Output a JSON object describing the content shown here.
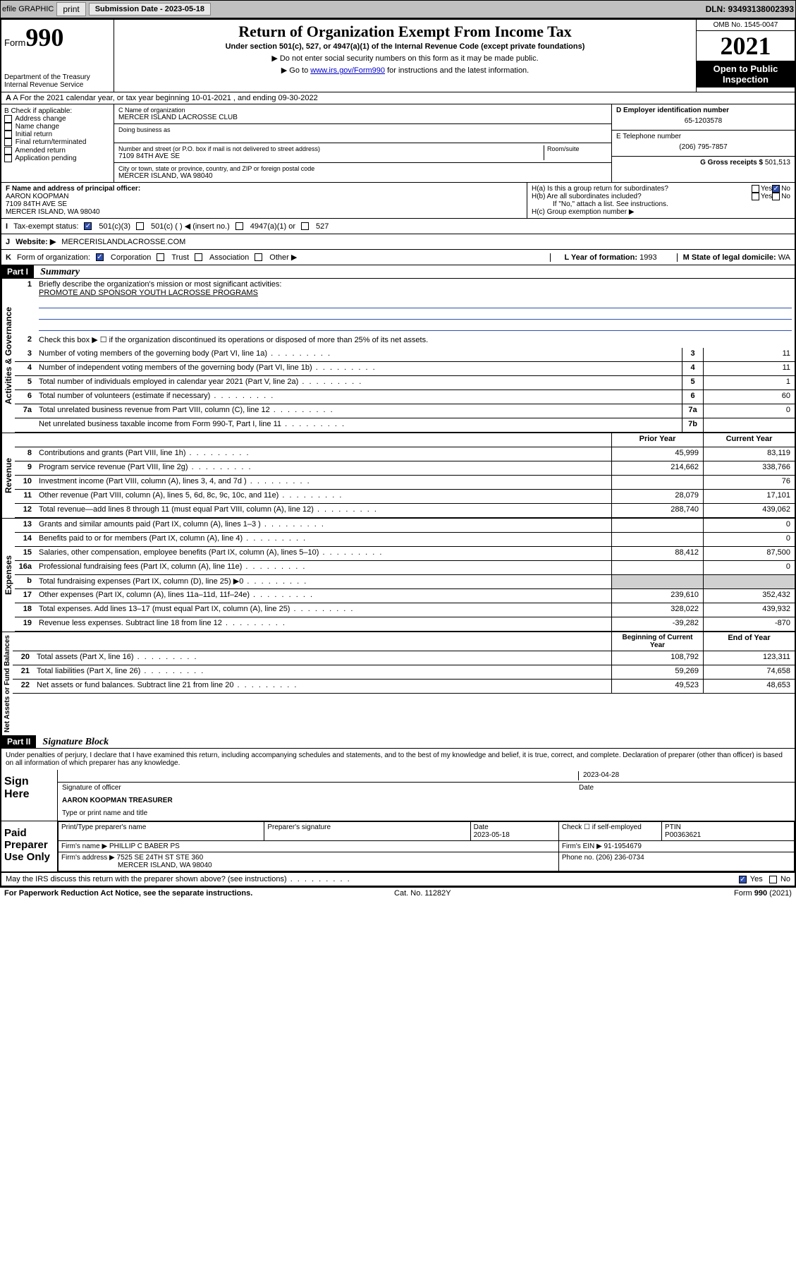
{
  "toolbar": {
    "efile": "efile GRAPHIC",
    "print": "print",
    "sub_label": "Submission Date - 2023-05-18",
    "dln": "DLN: 93493138002393"
  },
  "header": {
    "form_prefix": "Form",
    "form_num": "990",
    "title": "Return of Organization Exempt From Income Tax",
    "subtitle": "Under section 501(c), 527, or 4947(a)(1) of the Internal Revenue Code (except private foundations)",
    "note1": "▶ Do not enter social security numbers on this form as it may be made public.",
    "note2_pre": "▶ Go to ",
    "note2_link": "www.irs.gov/Form990",
    "note2_post": " for instructions and the latest information.",
    "dept": "Department of the Treasury\nInternal Revenue Service",
    "omb": "OMB No. 1545-0047",
    "year": "2021",
    "open": "Open to Public Inspection"
  },
  "row_a": "A  For the 2021 calendar year, or tax year beginning 10-01-2021    , and ending 09-30-2022",
  "box_b": {
    "title": "B Check if applicable:",
    "items": [
      "Address change",
      "Name change",
      "Initial return",
      "Final return/terminated",
      "Amended return",
      "Application pending"
    ]
  },
  "box_c": {
    "label_name": "C Name of organization",
    "name": "MERCER ISLAND LACROSSE CLUB",
    "dba_label": "Doing business as",
    "addr_label": "Number and street (or P.O. box if mail is not delivered to street address)",
    "room_label": "Room/suite",
    "addr": "7109 84TH AVE SE",
    "city_label": "City or town, state or province, country, and ZIP or foreign postal code",
    "city": "MERCER ISLAND, WA  98040"
  },
  "box_d": {
    "label": "D Employer identification number",
    "value": "65-1203578"
  },
  "box_e": {
    "label": "E Telephone number",
    "value": "(206) 795-7857"
  },
  "box_g": {
    "label": "G Gross receipts $",
    "value": "501,513"
  },
  "box_f": {
    "label": "F Name and address of principal officer:",
    "name": "AARON KOOPMAN",
    "addr1": "7109 84TH AVE SE",
    "addr2": "MERCER ISLAND, WA  98040"
  },
  "box_h": {
    "ha": "H(a)  Is this a group return for subordinates?",
    "hb": "H(b)  Are all subordinates included?",
    "hb_note": "If \"No,\" attach a list. See instructions.",
    "hc": "H(c)  Group exemption number ▶",
    "yes": "Yes",
    "no": "No"
  },
  "row_i": {
    "label": "I",
    "text": "Tax-exempt status:",
    "o1": "501(c)(3)",
    "o2": "501(c) (  ) ◀ (insert no.)",
    "o3": "4947(a)(1) or",
    "o4": "527"
  },
  "row_j": {
    "label": "J",
    "text": "Website: ▶",
    "value": "MERCERISLANDLACROSSE.COM"
  },
  "row_k": {
    "label": "K",
    "text": "Form of organization:",
    "o1": "Corporation",
    "o2": "Trust",
    "o3": "Association",
    "o4": "Other ▶"
  },
  "row_l": {
    "label": "L Year of formation:",
    "value": "1993"
  },
  "row_m": {
    "label": "M State of legal domicile:",
    "value": "WA"
  },
  "part1": {
    "hdr": "Part I",
    "title": "Summary",
    "l1": "Briefly describe the organization's mission or most significant activities:",
    "mission": "PROMOTE AND SPONSOR YOUTH LACROSSE PROGRAMS",
    "l2": "Check this box ▶ ☐  if the organization discontinued its operations or disposed of more than 25% of its net assets.",
    "sections": {
      "gov": "Activities & Governance",
      "rev": "Revenue",
      "exp": "Expenses",
      "net": "Net Assets or Fund Balances"
    },
    "rows_gov": [
      {
        "n": "3",
        "t": "Number of voting members of the governing body (Part VI, line 1a)",
        "b": "3",
        "v": "11"
      },
      {
        "n": "4",
        "t": "Number of independent voting members of the governing body (Part VI, line 1b)",
        "b": "4",
        "v": "11"
      },
      {
        "n": "5",
        "t": "Total number of individuals employed in calendar year 2021 (Part V, line 2a)",
        "b": "5",
        "v": "1"
      },
      {
        "n": "6",
        "t": "Total number of volunteers (estimate if necessary)",
        "b": "6",
        "v": "60"
      },
      {
        "n": "7a",
        "t": "Total unrelated business revenue from Part VIII, column (C), line 12",
        "b": "7a",
        "v": "0"
      },
      {
        "n": "",
        "t": "Net unrelated business taxable income from Form 990-T, Part I, line 11",
        "b": "7b",
        "v": ""
      }
    ],
    "col_prior": "Prior Year",
    "col_curr": "Current Year",
    "rows_rev": [
      {
        "n": "8",
        "t": "Contributions and grants (Part VIII, line 1h)",
        "p": "45,999",
        "c": "83,119"
      },
      {
        "n": "9",
        "t": "Program service revenue (Part VIII, line 2g)",
        "p": "214,662",
        "c": "338,766"
      },
      {
        "n": "10",
        "t": "Investment income (Part VIII, column (A), lines 3, 4, and 7d )",
        "p": "",
        "c": "76"
      },
      {
        "n": "11",
        "t": "Other revenue (Part VIII, column (A), lines 5, 6d, 8c, 9c, 10c, and 11e)",
        "p": "28,079",
        "c": "17,101"
      },
      {
        "n": "12",
        "t": "Total revenue—add lines 8 through 11 (must equal Part VIII, column (A), line 12)",
        "p": "288,740",
        "c": "439,062"
      }
    ],
    "rows_exp": [
      {
        "n": "13",
        "t": "Grants and similar amounts paid (Part IX, column (A), lines 1–3 )",
        "p": "",
        "c": "0"
      },
      {
        "n": "14",
        "t": "Benefits paid to or for members (Part IX, column (A), line 4)",
        "p": "",
        "c": "0"
      },
      {
        "n": "15",
        "t": "Salaries, other compensation, employee benefits (Part IX, column (A), lines 5–10)",
        "p": "88,412",
        "c": "87,500"
      },
      {
        "n": "16a",
        "t": "Professional fundraising fees (Part IX, column (A), line 11e)",
        "p": "",
        "c": "0"
      },
      {
        "n": "b",
        "t": "Total fundraising expenses (Part IX, column (D), line 25) ▶0",
        "p": "shaded",
        "c": "shaded"
      },
      {
        "n": "17",
        "t": "Other expenses (Part IX, column (A), lines 11a–11d, 11f–24e)",
        "p": "239,610",
        "c": "352,432"
      },
      {
        "n": "18",
        "t": "Total expenses. Add lines 13–17 (must equal Part IX, column (A), line 25)",
        "p": "328,022",
        "c": "439,932"
      },
      {
        "n": "19",
        "t": "Revenue less expenses. Subtract line 18 from line 12",
        "p": "-39,282",
        "c": "-870"
      }
    ],
    "col_beg": "Beginning of Current Year",
    "col_end": "End of Year",
    "rows_net": [
      {
        "n": "20",
        "t": "Total assets (Part X, line 16)",
        "p": "108,792",
        "c": "123,311"
      },
      {
        "n": "21",
        "t": "Total liabilities (Part X, line 26)",
        "p": "59,269",
        "c": "74,658"
      },
      {
        "n": "22",
        "t": "Net assets or fund balances. Subtract line 21 from line 20",
        "p": "49,523",
        "c": "48,653"
      }
    ]
  },
  "part2": {
    "hdr": "Part II",
    "title": "Signature Block",
    "decl": "Under penalties of perjury, I declare that I have examined this return, including accompanying schedules and statements, and to the best of my knowledge and belief, it is true, correct, and complete. Declaration of preparer (other than officer) is based on all information of which preparer has any knowledge.",
    "sign_here": "Sign Here",
    "sig_officer": "Signature of officer",
    "sig_date": "2023-04-28",
    "date_lbl": "Date",
    "officer": "AARON KOOPMAN TREASURER",
    "officer_lbl": "Type or print name and title",
    "paid": "Paid Preparer Use Only",
    "prep_name_lbl": "Print/Type preparer's name",
    "prep_sig_lbl": "Preparer's signature",
    "prep_date_lbl": "Date",
    "prep_date": "2023-05-18",
    "self_emp": "Check ☐ if self-employed",
    "ptin_lbl": "PTIN",
    "ptin": "P00363621",
    "firm_name_lbl": "Firm's name    ▶",
    "firm_name": "PHILLIP C BABER PS",
    "firm_ein_lbl": "Firm's EIN ▶",
    "firm_ein": "91-1954679",
    "firm_addr_lbl": "Firm's address ▶",
    "firm_addr1": "7525 SE 24TH ST STE 360",
    "firm_addr2": "MERCER ISLAND, WA  98040",
    "phone_lbl": "Phone no.",
    "phone": "(206) 236-0734",
    "discuss": "May the IRS discuss this return with the preparer shown above? (see instructions)",
    "yes": "Yes",
    "no": "No"
  },
  "footer": {
    "left": "For Paperwork Reduction Act Notice, see the separate instructions.",
    "mid": "Cat. No. 11282Y",
    "right": "Form 990 (2021)"
  }
}
